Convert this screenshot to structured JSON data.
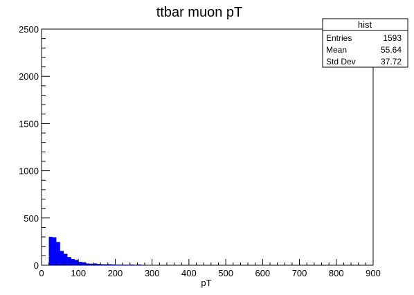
{
  "chart_data": {
    "type": "bar",
    "title": "ttbar muon pT",
    "xlabel": "pT",
    "ylabel": "",
    "xlim": [
      0,
      900
    ],
    "ylim": [
      0,
      2500
    ],
    "x_ticks": [
      "0",
      "100",
      "200",
      "300",
      "400",
      "500",
      "600",
      "700",
      "800",
      "900"
    ],
    "y_ticks": [
      "0",
      "500",
      "1000",
      "1500",
      "2000",
      "2500"
    ],
    "bin_width": 10,
    "bins": [
      {
        "x0": 20,
        "x1": 30,
        "value": 300
      },
      {
        "x0": 30,
        "x1": 40,
        "value": 295
      },
      {
        "x0": 40,
        "x1": 50,
        "value": 245
      },
      {
        "x0": 50,
        "x1": 60,
        "value": 150
      },
      {
        "x0": 60,
        "x1": 70,
        "value": 120
      },
      {
        "x0": 70,
        "x1": 80,
        "value": 85
      },
      {
        "x0": 80,
        "x1": 90,
        "value": 65
      },
      {
        "x0": 90,
        "x1": 100,
        "value": 55
      },
      {
        "x0": 100,
        "x1": 110,
        "value": 35
      },
      {
        "x0": 110,
        "x1": 120,
        "value": 30
      },
      {
        "x0": 120,
        "x1": 130,
        "value": 18
      },
      {
        "x0": 130,
        "x1": 140,
        "value": 15
      },
      {
        "x0": 140,
        "x1": 150,
        "value": 18
      },
      {
        "x0": 150,
        "x1": 160,
        "value": 12
      },
      {
        "x0": 160,
        "x1": 170,
        "value": 10
      },
      {
        "x0": 170,
        "x1": 180,
        "value": 8
      },
      {
        "x0": 180,
        "x1": 190,
        "value": 10
      },
      {
        "x0": 190,
        "x1": 200,
        "value": 7
      },
      {
        "x0": 200,
        "x1": 210,
        "value": 5
      },
      {
        "x0": 210,
        "x1": 220,
        "value": 5
      },
      {
        "x0": 220,
        "x1": 230,
        "value": 4
      },
      {
        "x0": 230,
        "x1": 240,
        "value": 4
      },
      {
        "x0": 240,
        "x1": 250,
        "value": 6
      },
      {
        "x0": 250,
        "x1": 260,
        "value": 3
      },
      {
        "x0": 260,
        "x1": 270,
        "value": 7
      },
      {
        "x0": 270,
        "x1": 280,
        "value": 3
      },
      {
        "x0": 280,
        "x1": 290,
        "value": 2
      },
      {
        "x0": 300,
        "x1": 310,
        "value": 2
      },
      {
        "x0": 320,
        "x1": 330,
        "value": 1
      },
      {
        "x0": 350,
        "x1": 360,
        "value": 1
      },
      {
        "x0": 400,
        "x1": 410,
        "value": 1
      }
    ],
    "legend_position": "top-right",
    "grid": false,
    "bar_color": "#0000ff",
    "stats_box": {
      "title": "hist",
      "rows": [
        {
          "label": "Entries",
          "value": "1593"
        },
        {
          "label": "Mean",
          "value": "55.64"
        },
        {
          "label": "Std Dev",
          "value": "37.72"
        }
      ]
    }
  }
}
